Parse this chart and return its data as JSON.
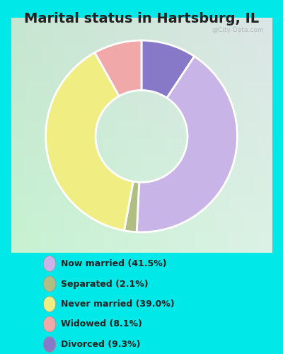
{
  "title": "Marital status in Hartsburg, IL",
  "slices": [
    41.5,
    2.1,
    39.0,
    8.1,
    9.3
  ],
  "labels": [
    "Now married (41.5%)",
    "Separated (2.1%)",
    "Never married (39.0%)",
    "Widowed (8.1%)",
    "Divorced (9.3%)"
  ],
  "colors": [
    "#c9b4e8",
    "#b0be84",
    "#f0ee82",
    "#f0a8a8",
    "#8878c8"
  ],
  "bg_outer": "#00e8e8",
  "bg_chart_top_left": "#d0ece0",
  "bg_chart_bottom_right": "#e8f4e8",
  "title_fontsize": 14,
  "watermark": "@City-Data.com",
  "wedge_order": [
    4,
    0,
    1,
    2,
    3
  ]
}
